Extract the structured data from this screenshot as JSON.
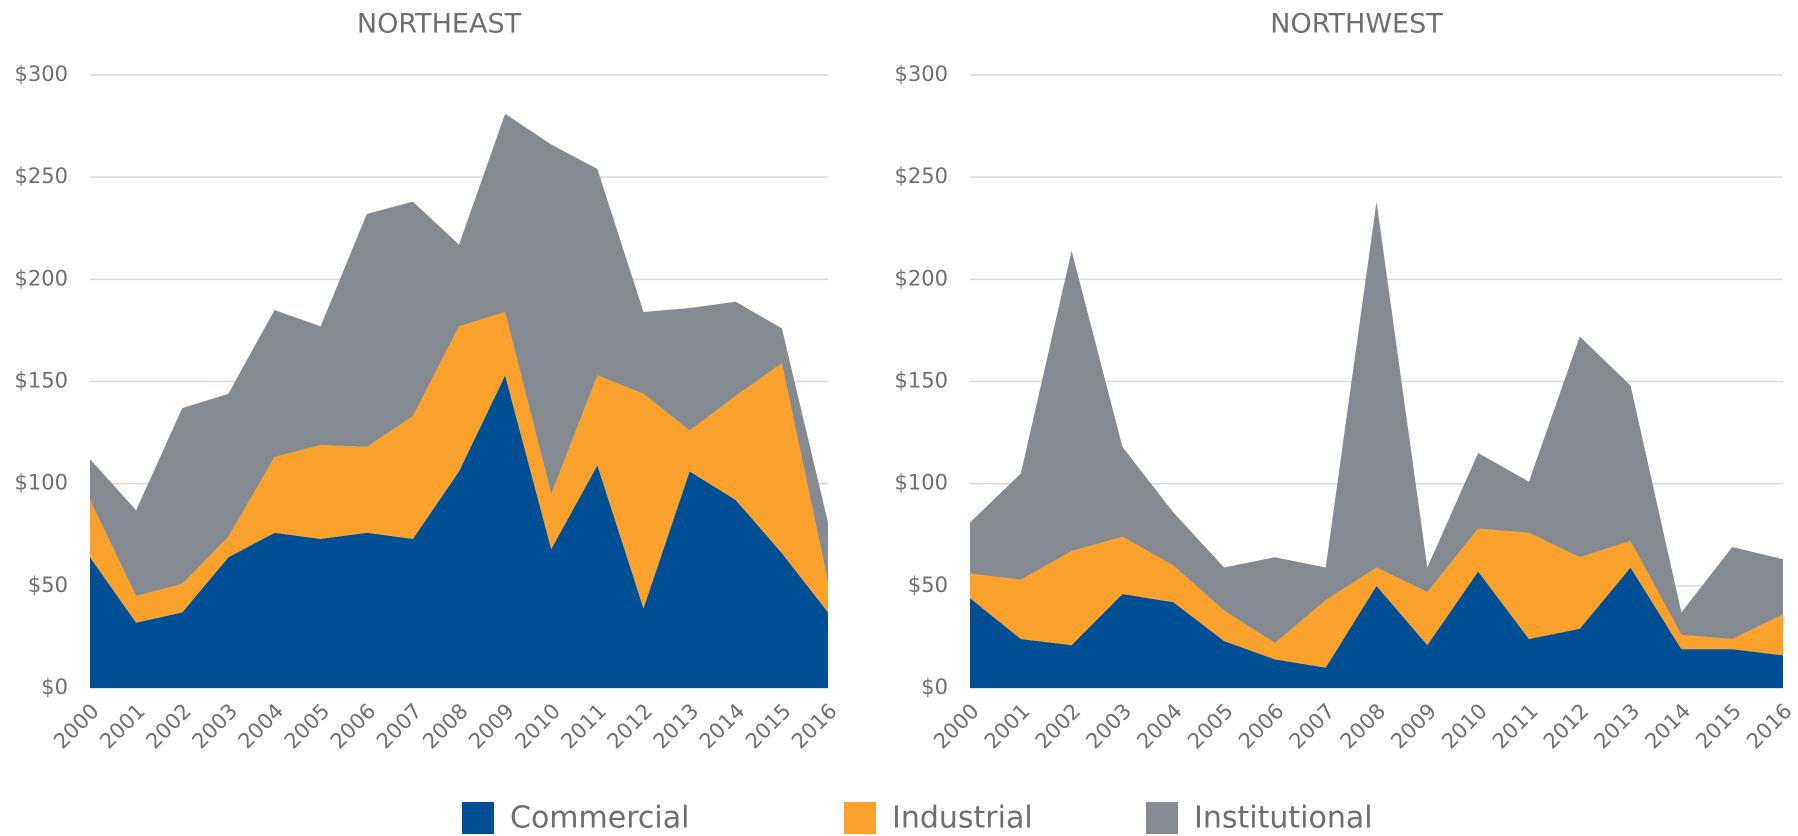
{
  "chart_data": [
    {
      "type": "area",
      "title": "NORTHEAST",
      "categories": [
        "2000",
        "2001",
        "2002",
        "2003",
        "2004",
        "2005",
        "2006",
        "2007",
        "2008",
        "2009",
        "2010",
        "2011",
        "2012",
        "2013",
        "2014",
        "2015",
        "2016"
      ],
      "series": [
        {
          "name": "Commercial",
          "color": "#004f95",
          "values": [
            64,
            32,
            37,
            64,
            76,
            73,
            76,
            73,
            106,
            153,
            68,
            109,
            39,
            106,
            92,
            66,
            37
          ]
        },
        {
          "name": "Industrial",
          "color": "#f9a12a",
          "values": [
            28,
            13,
            14,
            10,
            37,
            46,
            42,
            60,
            71,
            31,
            27,
            44,
            105,
            20,
            51,
            93,
            15
          ]
        },
        {
          "name": "Institutional",
          "color": "#858a91",
          "values": [
            20,
            42,
            86,
            70,
            72,
            58,
            114,
            105,
            40,
            97,
            171,
            101,
            40,
            60,
            46,
            17,
            29
          ]
        }
      ],
      "ylim": [
        0,
        300
      ],
      "yticks": [
        {
          "value": 0,
          "label": "$0"
        },
        {
          "value": 50,
          "label": "$50"
        },
        {
          "value": 100,
          "label": "$100"
        },
        {
          "value": 150,
          "label": "$150"
        },
        {
          "value": 200,
          "label": "$200"
        },
        {
          "value": 250,
          "label": "$250"
        },
        {
          "value": 300,
          "label": "$300"
        }
      ],
      "grid": true,
      "stacked": true
    },
    {
      "type": "area",
      "title": "NORTHWEST",
      "categories": [
        "2000",
        "2001",
        "2002",
        "2003",
        "2004",
        "2005",
        "2006",
        "2007",
        "2008",
        "2009",
        "2010",
        "2011",
        "2012",
        "2013",
        "2014",
        "2015",
        "2016"
      ],
      "series": [
        {
          "name": "Commercial",
          "color": "#004f95",
          "values": [
            44,
            24,
            21,
            46,
            42,
            23,
            14,
            10,
            50,
            21,
            57,
            24,
            29,
            59,
            19,
            19,
            16
          ]
        },
        {
          "name": "Industrial",
          "color": "#f9a12a",
          "values": [
            12,
            29,
            46,
            28,
            18,
            15,
            8,
            33,
            9,
            26,
            21,
            52,
            35,
            13,
            7,
            5,
            20
          ]
        },
        {
          "name": "Institutional",
          "color": "#858a91",
          "values": [
            25,
            52,
            147,
            44,
            26,
            21,
            42,
            16,
            179,
            12,
            37,
            25,
            108,
            76,
            11,
            45,
            27
          ]
        }
      ],
      "ylim": [
        0,
        300
      ],
      "yticks": [
        {
          "value": 0,
          "label": "$0"
        },
        {
          "value": 50,
          "label": "$50"
        },
        {
          "value": 100,
          "label": "$100"
        },
        {
          "value": 150,
          "label": "$150"
        },
        {
          "value": 200,
          "label": "$200"
        },
        {
          "value": 250,
          "label": "$250"
        },
        {
          "value": 300,
          "label": "$300"
        }
      ],
      "grid": true,
      "stacked": true
    }
  ]
}
